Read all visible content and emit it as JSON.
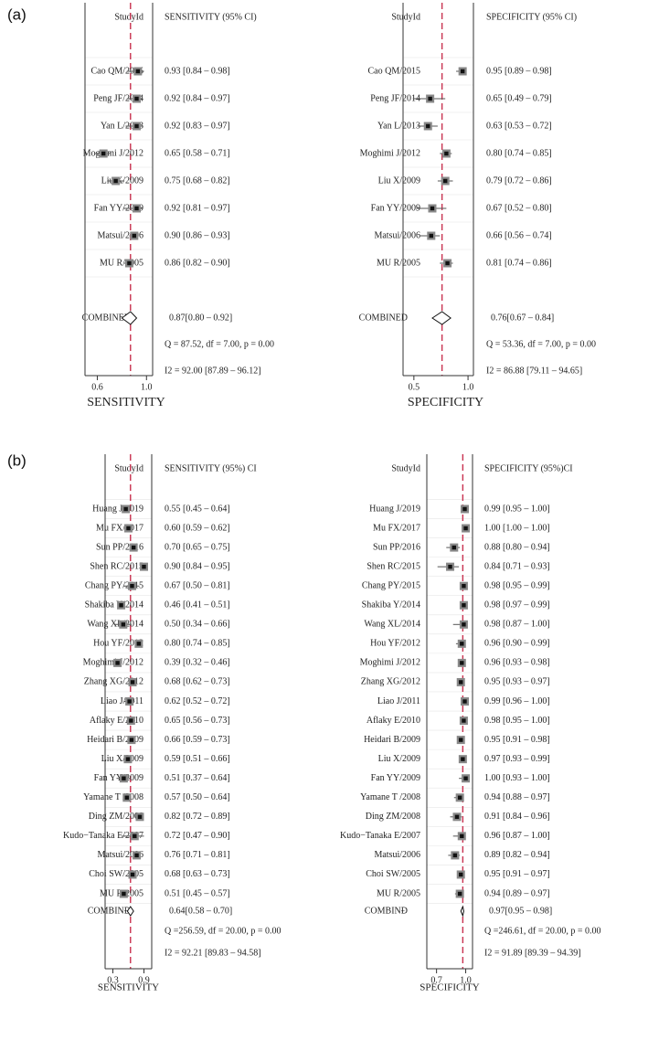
{
  "colors": {
    "ink": "#222222",
    "reference_line": "#c8314f",
    "grid": "#e6e6e6",
    "marker_fill": "#111111",
    "marker_border": "#888888"
  },
  "chart_data": [
    {
      "id": "a-sensitivity",
      "panel": "(a)",
      "type": "forest",
      "title": "SENSITIVITY",
      "study_header": "StudyId",
      "estimate_header": "SENSITIVITY (95% CI)",
      "xlim": [
        0.5,
        1.05
      ],
      "xticks": [
        0.6,
        1.0
      ],
      "xtick_labels": [
        "0.6",
        "1.0"
      ],
      "reference_value": 0.87,
      "studies": [
        {
          "name": "Cao QM/2015",
          "est": 0.93,
          "lo": 0.84,
          "hi": 0.98,
          "label": "0.93 [0.84 – 0.98]"
        },
        {
          "name": "Peng JF/2014",
          "est": 0.92,
          "lo": 0.84,
          "hi": 0.97,
          "label": "0.92 [0.84 – 0.97]"
        },
        {
          "name": "Yan L/2013",
          "est": 0.92,
          "lo": 0.83,
          "hi": 0.97,
          "label": "0.92 [0.83 – 0.97]"
        },
        {
          "name": "Moghimi J/2012",
          "est": 0.65,
          "lo": 0.58,
          "hi": 0.71,
          "label": "0.65 [0.58 – 0.71]"
        },
        {
          "name": "Liu X/2009",
          "est": 0.75,
          "lo": 0.68,
          "hi": 0.82,
          "label": "0.75 [0.68 – 0.82]"
        },
        {
          "name": "Fan YY/2009",
          "est": 0.92,
          "lo": 0.81,
          "hi": 0.97,
          "label": "0.92 [0.81 – 0.97]"
        },
        {
          "name": "Matsui/2006",
          "est": 0.9,
          "lo": 0.86,
          "hi": 0.93,
          "label": "0.90 [0.86 – 0.93]"
        },
        {
          "name": "MU R/2005",
          "est": 0.86,
          "lo": 0.82,
          "hi": 0.9,
          "label": "0.86 [0.82 – 0.90]"
        }
      ],
      "combined": {
        "name": "COMBINED",
        "est": 0.87,
        "lo": 0.8,
        "hi": 0.92,
        "label": "0.87[0.80 – 0.92]"
      },
      "q_stat": "Q = 87.52, df = 7.00, p =  0.00",
      "i2_stat": "I2 = 92.00 [87.89 – 96.12]"
    },
    {
      "id": "a-specificity",
      "panel": "",
      "type": "forest",
      "title": "SPECIFICITY",
      "study_header": "StudyId",
      "estimate_header": "SPECIFICITY (95% CI)",
      "xlim": [
        0.4,
        1.05
      ],
      "xticks": [
        0.5,
        1.0
      ],
      "xtick_labels": [
        "0.5",
        "1.0"
      ],
      "reference_value": 0.76,
      "studies": [
        {
          "name": "Cao QM/2015",
          "est": 0.95,
          "lo": 0.89,
          "hi": 0.98,
          "label": "0.95 [0.89 – 0.98]"
        },
        {
          "name": "Peng JF/2014",
          "est": 0.65,
          "lo": 0.49,
          "hi": 0.79,
          "label": "0.65 [0.49 – 0.79]"
        },
        {
          "name": "Yan L/2013",
          "est": 0.63,
          "lo": 0.53,
          "hi": 0.72,
          "label": "0.63 [0.53 – 0.72]"
        },
        {
          "name": "Moghimi J/2012",
          "est": 0.8,
          "lo": 0.74,
          "hi": 0.85,
          "label": "0.80 [0.74 – 0.85]"
        },
        {
          "name": "Liu X/2009",
          "est": 0.79,
          "lo": 0.72,
          "hi": 0.86,
          "label": "0.79 [0.72 – 0.86]"
        },
        {
          "name": "Fan YY/2009",
          "est": 0.67,
          "lo": 0.52,
          "hi": 0.8,
          "label": "0.67 [0.52 – 0.80]"
        },
        {
          "name": "Matsui/2006",
          "est": 0.66,
          "lo": 0.56,
          "hi": 0.74,
          "label": "0.66 [0.56 – 0.74]"
        },
        {
          "name": "MU R/2005",
          "est": 0.81,
          "lo": 0.74,
          "hi": 0.86,
          "label": "0.81 [0.74 – 0.86]"
        }
      ],
      "combined": {
        "name": "COMBINED",
        "est": 0.76,
        "lo": 0.67,
        "hi": 0.84,
        "label": "0.76[0.67 – 0.84]"
      },
      "q_stat": "Q = 53.36, df = 7.00, p =  0.00",
      "i2_stat": "I2 = 86.88 [79.11 – 94.65]"
    },
    {
      "id": "b-sensitivity",
      "panel": "(b)",
      "type": "forest",
      "title": "SENSITIVITY",
      "study_header": "StudyId",
      "estimate_header": "SENSITIVITY (95%) CI",
      "xlim": [
        0.15,
        1.05
      ],
      "xticks": [
        0.3,
        0.9
      ],
      "xtick_labels": [
        "0.3",
        "0.9"
      ],
      "reference_value": 0.64,
      "studies": [
        {
          "name": "Huang J/2019",
          "est": 0.55,
          "lo": 0.45,
          "hi": 0.64,
          "label": "0.55 [0.45 – 0.64]"
        },
        {
          "name": "Mu FX/2017",
          "est": 0.6,
          "lo": 0.59,
          "hi": 0.62,
          "label": "0.60 [0.59 – 0.62]"
        },
        {
          "name": "Sun PP/2016",
          "est": 0.7,
          "lo": 0.65,
          "hi": 0.75,
          "label": "0.70 [0.65 – 0.75]"
        },
        {
          "name": "Shen RC/2015",
          "est": 0.9,
          "lo": 0.84,
          "hi": 0.95,
          "label": "0.90 [0.84 – 0.95]"
        },
        {
          "name": "Chang PY/2015",
          "est": 0.67,
          "lo": 0.5,
          "hi": 0.81,
          "label": "0.67 [0.50 – 0.81]"
        },
        {
          "name": "Shakiba Y/2014",
          "est": 0.46,
          "lo": 0.41,
          "hi": 0.51,
          "label": "0.46 [0.41 – 0.51]"
        },
        {
          "name": "Wang XL/2014",
          "est": 0.5,
          "lo": 0.34,
          "hi": 0.66,
          "label": "0.50 [0.34 – 0.66]"
        },
        {
          "name": "Hou YF/2012",
          "est": 0.8,
          "lo": 0.74,
          "hi": 0.85,
          "label": "0.80 [0.74 – 0.85]"
        },
        {
          "name": "Moghimi J/2012",
          "est": 0.39,
          "lo": 0.32,
          "hi": 0.46,
          "label": "0.39 [0.32 – 0.46]"
        },
        {
          "name": "Zhang XG/2012",
          "est": 0.68,
          "lo": 0.62,
          "hi": 0.73,
          "label": "0.68 [0.62 – 0.73]"
        },
        {
          "name": "Liao J/2011",
          "est": 0.62,
          "lo": 0.52,
          "hi": 0.72,
          "label": "0.62 [0.52 – 0.72]"
        },
        {
          "name": "Aflaky E/2010",
          "est": 0.65,
          "lo": 0.56,
          "hi": 0.73,
          "label": "0.65 [0.56 – 0.73]"
        },
        {
          "name": "Heidari B/2009",
          "est": 0.66,
          "lo": 0.59,
          "hi": 0.73,
          "label": "0.66 [0.59 – 0.73]"
        },
        {
          "name": "Liu X/2009",
          "est": 0.59,
          "lo": 0.51,
          "hi": 0.66,
          "label": "0.59 [0.51 – 0.66]"
        },
        {
          "name": "Fan YY/2009",
          "est": 0.51,
          "lo": 0.37,
          "hi": 0.64,
          "label": "0.51 [0.37 – 0.64]"
        },
        {
          "name": "Yamane T /2008",
          "est": 0.57,
          "lo": 0.5,
          "hi": 0.64,
          "label": "0.57 [0.50 – 0.64]"
        },
        {
          "name": "Ding ZM/2008",
          "est": 0.82,
          "lo": 0.72,
          "hi": 0.89,
          "label": "0.82 [0.72 – 0.89]"
        },
        {
          "name": "Kudo−Tanaka E/2007",
          "est": 0.72,
          "lo": 0.47,
          "hi": 0.9,
          "label": "0.72 [0.47 – 0.90]"
        },
        {
          "name": "Matsui/2006",
          "est": 0.76,
          "lo": 0.71,
          "hi": 0.81,
          "label": "0.76 [0.71 – 0.81]"
        },
        {
          "name": "Choi SW/2005",
          "est": 0.68,
          "lo": 0.63,
          "hi": 0.73,
          "label": "0.68 [0.63 – 0.73]"
        },
        {
          "name": "MU R/2005",
          "est": 0.51,
          "lo": 0.45,
          "hi": 0.57,
          "label": "0.51 [0.45 – 0.57]"
        }
      ],
      "combined": {
        "name": "COMBINĐ",
        "est": 0.64,
        "lo": 0.58,
        "hi": 0.7,
        "label": "0.64[0.58 – 0.70]"
      },
      "q_stat": "Q =256.59, df = 20.00, p =  0.00",
      "i2_stat": "I2 = 92.21 [89.83 – 94.58]"
    },
    {
      "id": "b-specificity",
      "panel": "",
      "type": "forest",
      "title": "SPECIFICITY",
      "study_header": "StudyId",
      "estimate_header": "SPECIFICITY (95%)CI",
      "xlim": [
        0.6,
        1.07
      ],
      "xticks": [
        0.7,
        1.0
      ],
      "xtick_labels": [
        "0.7",
        "1.0"
      ],
      "reference_value": 0.97,
      "studies": [
        {
          "name": "Huang J/2019",
          "est": 0.99,
          "lo": 0.95,
          "hi": 1.0,
          "label": "0.99 [0.95 – 1.00]"
        },
        {
          "name": "Mu FX/2017",
          "est": 1.0,
          "lo": 1.0,
          "hi": 1.0,
          "label": "1.00 [1.00 – 1.00]"
        },
        {
          "name": "Sun PP/2016",
          "est": 0.88,
          "lo": 0.8,
          "hi": 0.94,
          "label": "0.88 [0.80 – 0.94]"
        },
        {
          "name": "Shen RC/2015",
          "est": 0.84,
          "lo": 0.71,
          "hi": 0.93,
          "label": "0.84 [0.71 – 0.93]"
        },
        {
          "name": "Chang PY/2015",
          "est": 0.98,
          "lo": 0.95,
          "hi": 0.99,
          "label": "0.98 [0.95 – 0.99]"
        },
        {
          "name": "Shakiba Y/2014",
          "est": 0.98,
          "lo": 0.97,
          "hi": 0.99,
          "label": "0.98 [0.97 – 0.99]"
        },
        {
          "name": "Wang XL/2014",
          "est": 0.98,
          "lo": 0.87,
          "hi": 1.0,
          "label": "0.98 [0.87 – 1.00]"
        },
        {
          "name": "Hou YF/2012",
          "est": 0.96,
          "lo": 0.9,
          "hi": 0.99,
          "label": "0.96 [0.90 – 0.99]"
        },
        {
          "name": "Moghimi J/2012",
          "est": 0.96,
          "lo": 0.93,
          "hi": 0.98,
          "label": "0.96 [0.93 – 0.98]"
        },
        {
          "name": "Zhang XG/2012",
          "est": 0.95,
          "lo": 0.93,
          "hi": 0.97,
          "label": "0.95 [0.93 – 0.97]"
        },
        {
          "name": "Liao J/2011",
          "est": 0.99,
          "lo": 0.96,
          "hi": 1.0,
          "label": "0.99 [0.96 – 1.00]"
        },
        {
          "name": "Aflaky E/2010",
          "est": 0.98,
          "lo": 0.95,
          "hi": 1.0,
          "label": "0.98 [0.95 – 1.00]"
        },
        {
          "name": "Heidari B/2009",
          "est": 0.95,
          "lo": 0.91,
          "hi": 0.98,
          "label": "0.95 [0.91 – 0.98]"
        },
        {
          "name": "Liu X/2009",
          "est": 0.97,
          "lo": 0.93,
          "hi": 0.99,
          "label": "0.97 [0.93 – 0.99]"
        },
        {
          "name": "Fan YY/2009",
          "est": 1.0,
          "lo": 0.93,
          "hi": 1.0,
          "label": "1.00 [0.93 – 1.00]"
        },
        {
          "name": "Yamane T /2008",
          "est": 0.94,
          "lo": 0.88,
          "hi": 0.97,
          "label": "0.94 [0.88 – 0.97]"
        },
        {
          "name": "Ding ZM/2008",
          "est": 0.91,
          "lo": 0.84,
          "hi": 0.96,
          "label": "0.91 [0.84 – 0.96]"
        },
        {
          "name": "Kudo−Tanaka E/2007",
          "est": 0.96,
          "lo": 0.87,
          "hi": 1.0,
          "label": "0.96 [0.87 – 1.00]"
        },
        {
          "name": "Matsui/2006",
          "est": 0.89,
          "lo": 0.82,
          "hi": 0.94,
          "label": "0.89 [0.82 – 0.94]"
        },
        {
          "name": "Choi SW/2005",
          "est": 0.95,
          "lo": 0.91,
          "hi": 0.97,
          "label": "0.95 [0.91 – 0.97]"
        },
        {
          "name": "MU R/2005",
          "est": 0.94,
          "lo": 0.89,
          "hi": 0.97,
          "label": "0.94 [0.89 – 0.97]"
        }
      ],
      "combined": {
        "name": "COMBINĐ",
        "est": 0.97,
        "lo": 0.95,
        "hi": 0.98,
        "label": "0.97[0.95 – 0.98]"
      },
      "q_stat": "Q =246.61, df = 20.00, p =  0.00",
      "i2_stat": "I2 = 91.89 [89.39 – 94.39]"
    }
  ]
}
